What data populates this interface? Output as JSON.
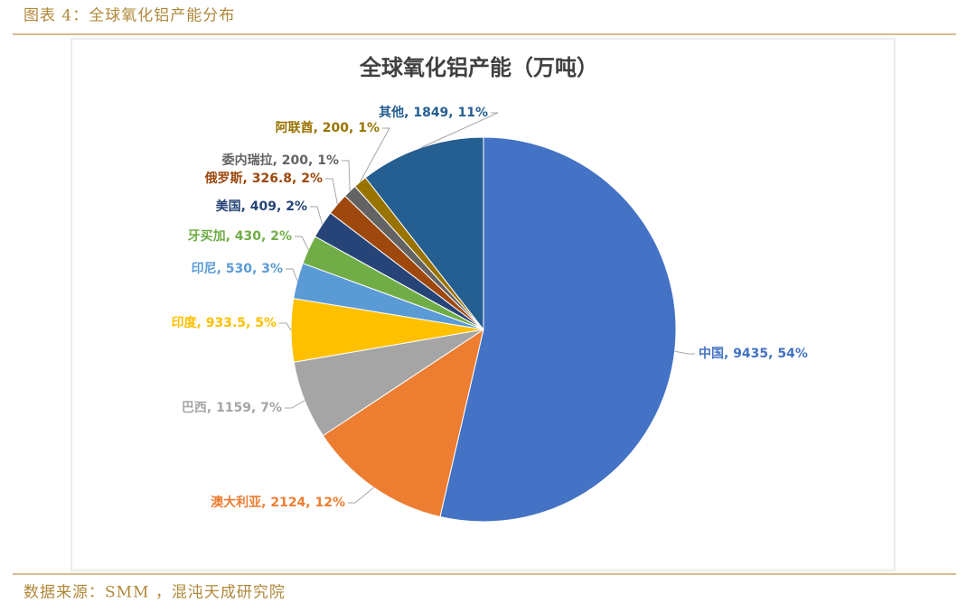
{
  "caption": "图表 4：全球氧化铝产能分布",
  "source": "数据来源：SMM ，混沌天成研究院",
  "chart_data": {
    "type": "pie",
    "title": "全球氧化铝产能（万吨）",
    "categories": [
      "中国",
      "澳大利亚",
      "巴西",
      "印度",
      "印尼",
      "牙买加",
      "美国",
      "俄罗斯",
      "委内瑞拉",
      "阿联酋",
      "其他"
    ],
    "values": [
      9435,
      2124,
      1159,
      933.5,
      530,
      430,
      409,
      326.8,
      200,
      200,
      1849
    ],
    "value_labels": [
      "中国, 9435, 54%",
      "澳大利亚, 2124, 12%",
      "巴西, 1159, 7%",
      "印度, 933.5, 5%",
      "印尼, 530, 3%",
      "牙买加, 430, 2%",
      "美国, 409, 2%",
      "俄罗斯, 326.8, 2%",
      "委内瑞拉, 200, 1%",
      "阿联酋, 200, 1%",
      "其他, 1849, 11%"
    ],
    "colors": [
      "#4472c4",
      "#ed7d31",
      "#a5a5a5",
      "#ffc000",
      "#5b9bd5",
      "#70ad47",
      "#264478",
      "#9e480e",
      "#636363",
      "#997300",
      "#255e91"
    ]
  }
}
